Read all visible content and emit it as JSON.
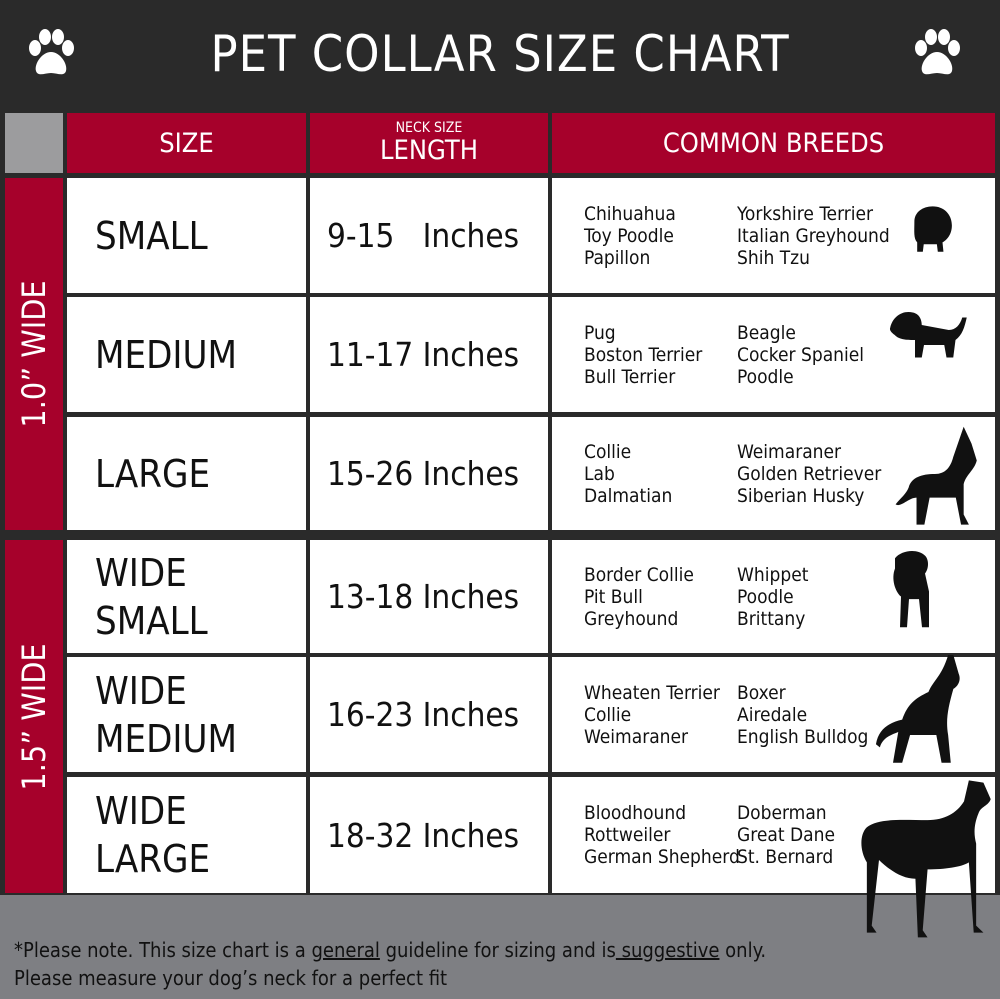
{
  "title": "PET COLLAR SIZE CHART",
  "icons": {
    "left": "paw-icon",
    "right": "paw-icon"
  },
  "colors": {
    "accent": "#a6012b",
    "background": "#2a2a2a",
    "footer": "#7e7f83"
  },
  "headers": {
    "size": "SIZE",
    "length_small": "NECK SIZE",
    "length": "LENGTH",
    "breeds": "COMMON BREEDS"
  },
  "groups": [
    {
      "label": "1.0” WIDE"
    },
    {
      "label": "1.5” WIDE"
    }
  ],
  "rows": [
    {
      "size": "SMALL",
      "length": "9-15   Inches",
      "breeds_a": [
        "Chihuahua",
        "Toy Poodle",
        "Papillon"
      ],
      "breeds_b": [
        "Yorkshire Terrier",
        "Italian Greyhound",
        "Shih Tzu"
      ],
      "icon": "small-dog-icon"
    },
    {
      "size": "MEDIUM",
      "length": "11-17 Inches",
      "breeds_a": [
        "Pug",
        "Boston Terrier",
        "Bull Terrier"
      ],
      "breeds_b": [
        "Beagle",
        "Cocker Spaniel",
        "Poodle"
      ],
      "icon": "medium-dog-icon"
    },
    {
      "size": "LARGE",
      "length": "15-26 Inches",
      "breeds_a": [
        "Collie",
        "Lab",
        "Dalmatian"
      ],
      "breeds_b": [
        "Weimaraner",
        "Golden Retriever",
        "Siberian Husky"
      ],
      "icon": "large-dog-icon"
    },
    {
      "size": "WIDE\nSMALL",
      "size_1": "WIDE",
      "size_2": "SMALL",
      "length": "13-18 Inches",
      "breeds_a": [
        "Border Collie",
        "Pit Bull",
        "Greyhound"
      ],
      "breeds_b": [
        "Whippet",
        "Poodle",
        "Brittany"
      ],
      "icon": "bulldog-icon"
    },
    {
      "size_1": "WIDE",
      "size_2": "MEDIUM",
      "length": "16-23 Inches",
      "breeds_a": [
        "Wheaten Terrier",
        "Collie",
        "Weimaraner"
      ],
      "breeds_b": [
        "Boxer",
        "Airedale",
        "English Bulldog"
      ],
      "icon": "pitbull-icon"
    },
    {
      "size_1": "WIDE",
      "size_2": "LARGE",
      "length": "18-32 Inches",
      "breeds_a": [
        "Bloodhound",
        "Rottweiler",
        "German Shepherd"
      ],
      "breeds_b": [
        "Doberman",
        "Great Dane",
        "St. Bernard"
      ],
      "icon": "doberman-icon"
    }
  ],
  "footer": {
    "line1_a": "*Please note. This size chart is a ",
    "line1_b": "general",
    "line1_c": " guideline for sizing and is",
    "line1_d": " suggestive",
    "line1_e": " only.",
    "line2": "Please measure your dog’s neck for a perfect fit"
  }
}
